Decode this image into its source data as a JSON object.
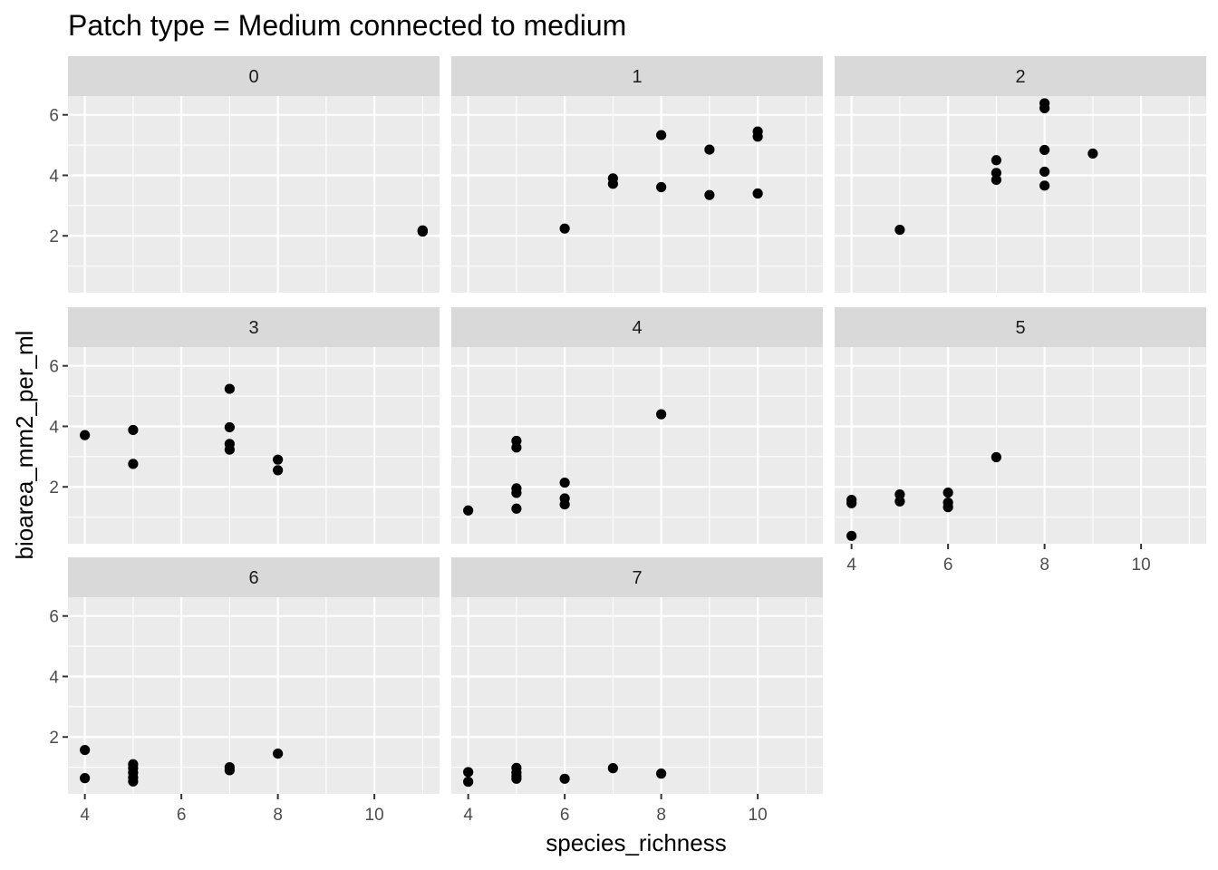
{
  "chart_data": {
    "type": "scatter",
    "title": "Patch type = Medium connected to medium",
    "xlabel": "species_richness",
    "ylabel": "bioarea_mm2_per_ml",
    "xlim": [
      3.65,
      11.35
    ],
    "ylim": [
      0.12,
      6.62
    ],
    "x_ticks": [
      4,
      6,
      8,
      10
    ],
    "y_ticks": [
      2,
      4,
      6
    ],
    "grid": true,
    "facet_ncol": 3,
    "colors": {
      "panel_bg": "#ebebeb",
      "strip_bg": "#d9d9d9",
      "grid": "#ffffff",
      "point": "#000000",
      "tick": "#333333"
    },
    "panels": [
      {
        "label": "0",
        "points": [
          [
            11,
            2.16
          ],
          [
            11,
            2.18
          ],
          [
            11,
            2.14
          ],
          [
            11,
            2.17
          ]
        ]
      },
      {
        "label": "1",
        "points": [
          [
            6,
            2.24
          ],
          [
            7,
            3.9
          ],
          [
            7,
            3.72
          ],
          [
            8,
            5.33
          ],
          [
            8,
            3.61
          ],
          [
            9,
            4.85
          ],
          [
            9,
            3.35
          ],
          [
            10,
            5.45
          ],
          [
            10,
            5.28
          ],
          [
            10,
            3.4
          ]
        ]
      },
      {
        "label": "2",
        "points": [
          [
            5,
            2.2
          ],
          [
            7,
            4.5
          ],
          [
            7,
            4.08
          ],
          [
            7,
            3.85
          ],
          [
            8,
            6.38
          ],
          [
            8,
            6.22
          ],
          [
            8,
            4.84
          ],
          [
            8,
            4.12
          ],
          [
            8,
            3.66
          ],
          [
            9,
            4.72
          ]
        ]
      },
      {
        "label": "3",
        "points": [
          [
            4,
            3.71
          ],
          [
            5,
            3.88
          ],
          [
            5,
            2.76
          ],
          [
            7,
            5.24
          ],
          [
            7,
            3.97
          ],
          [
            7,
            3.42
          ],
          [
            7,
            3.23
          ],
          [
            8,
            2.9
          ],
          [
            8,
            2.55
          ]
        ]
      },
      {
        "label": "4",
        "points": [
          [
            4,
            1.22
          ],
          [
            5,
            3.52
          ],
          [
            5,
            3.3
          ],
          [
            5,
            1.95
          ],
          [
            5,
            1.8
          ],
          [
            5,
            1.28
          ],
          [
            6,
            2.14
          ],
          [
            6,
            1.62
          ],
          [
            6,
            1.42
          ],
          [
            8,
            4.4
          ]
        ]
      },
      {
        "label": "5",
        "points": [
          [
            4,
            1.57
          ],
          [
            4,
            1.46
          ],
          [
            4,
            0.38
          ],
          [
            5,
            1.75
          ],
          [
            5,
            1.52
          ],
          [
            6,
            1.81
          ],
          [
            6,
            1.48
          ],
          [
            6,
            1.33
          ],
          [
            7,
            2.98
          ]
        ]
      },
      {
        "label": "6",
        "points": [
          [
            4,
            1.57
          ],
          [
            4,
            0.64
          ],
          [
            5,
            1.1
          ],
          [
            5,
            0.97
          ],
          [
            5,
            0.82
          ],
          [
            5,
            0.66
          ],
          [
            5,
            0.53
          ],
          [
            7,
            1.0
          ],
          [
            7,
            0.9
          ],
          [
            8,
            1.45
          ]
        ]
      },
      {
        "label": "7",
        "points": [
          [
            4,
            0.84
          ],
          [
            4,
            0.52
          ],
          [
            5,
            0.98
          ],
          [
            5,
            0.82
          ],
          [
            5,
            0.7
          ],
          [
            5,
            0.62
          ],
          [
            6,
            0.62
          ],
          [
            7,
            0.97
          ],
          [
            8,
            0.79
          ]
        ]
      }
    ]
  }
}
